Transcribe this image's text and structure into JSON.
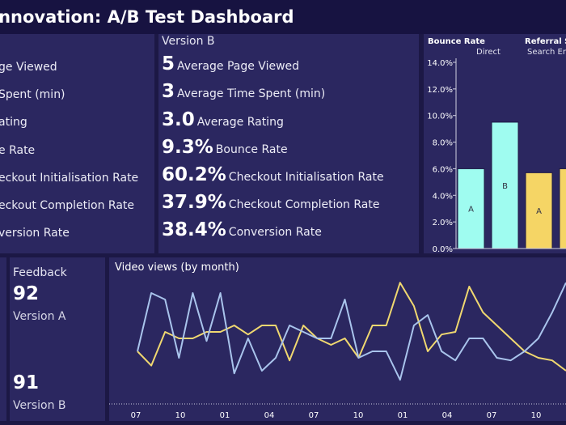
{
  "header": {
    "title": "n Innovation: A/B Test Dashboard"
  },
  "version_a": {
    "labels": [
      "ge Viewed",
      " Spent (min)",
      "ating",
      "e Rate",
      "eckout Initialisation Rate",
      "eckout Completion Rate",
      "version Rate"
    ]
  },
  "version_b": {
    "title": "Version B",
    "metrics": [
      {
        "value": "5",
        "label": "Average Page Viewed"
      },
      {
        "value": "3",
        "label": "Average Time Spent (min)"
      },
      {
        "value": "3.0",
        "label": "Average Rating"
      },
      {
        "value": "9.3%",
        "label": "Bounce Rate"
      },
      {
        "value": "60.2%",
        "label": "Checkout Initialisation Rate"
      },
      {
        "value": "37.9%",
        "label": "Checkout Completion Rate"
      },
      {
        "value": "38.4%",
        "label": "Conversion Rate"
      }
    ]
  },
  "feedback": {
    "title": "Feedback",
    "a_value": "92",
    "a_label": "Version A",
    "b_value": "91",
    "b_label": "Version B"
  },
  "colors": {
    "version_a": "#f5d565",
    "version_b": "#9ffcf0",
    "line_a": "#f0d870",
    "line_b": "#a9c4ec",
    "panel": "#2b2760",
    "background": "#1c1845"
  },
  "chart_data": [
    {
      "type": "bar",
      "title": "Bounce Rate",
      "header_right": "Referral So",
      "groups": [
        "Direct",
        "Search En"
      ],
      "ylim": [
        0,
        14
      ],
      "ticks": [
        "0.0%",
        "2.0%",
        "4.0%",
        "6.0%",
        "8.0%",
        "10.0%",
        "12.0%",
        "14.0%"
      ],
      "tick_values": [
        0,
        2,
        4,
        6,
        8,
        10,
        12,
        14
      ],
      "bars": [
        {
          "group": "Direct",
          "label": "A",
          "value": 6.0,
          "color": "#9ffcf0"
        },
        {
          "group": "Direct",
          "label": "B",
          "value": 9.5,
          "color": "#9ffcf0"
        },
        {
          "group": "Search En",
          "label": "A",
          "value": 5.7,
          "color": "#f5d565"
        },
        {
          "group": "Search En",
          "label": "",
          "value": 6.0,
          "color": "#f5d565"
        }
      ]
    },
    {
      "type": "line",
      "title": "Video views (by month)",
      "x_ticks": [
        "07",
        "10",
        "01",
        "04",
        "07",
        "10",
        "01",
        "04",
        "07",
        "10"
      ],
      "ylim": [
        0,
        100
      ],
      "series": [
        {
          "color": "#f0d870",
          "values": [
            40,
            29,
            55,
            50,
            50,
            55,
            55,
            60,
            53,
            60,
            60,
            33,
            60,
            50,
            45,
            50,
            35,
            60,
            60,
            93,
            75,
            40,
            53,
            55,
            90,
            70,
            60,
            50,
            40,
            35,
            33,
            25
          ]
        },
        {
          "color": "#a9c4ec",
          "values": [
            40,
            85,
            80,
            35,
            85,
            48,
            85,
            23,
            50,
            25,
            35,
            60,
            55,
            50,
            50,
            80,
            35,
            40,
            40,
            18,
            60,
            68,
            40,
            33,
            50,
            50,
            35,
            33,
            40,
            50,
            70,
            93
          ]
        }
      ]
    }
  ]
}
